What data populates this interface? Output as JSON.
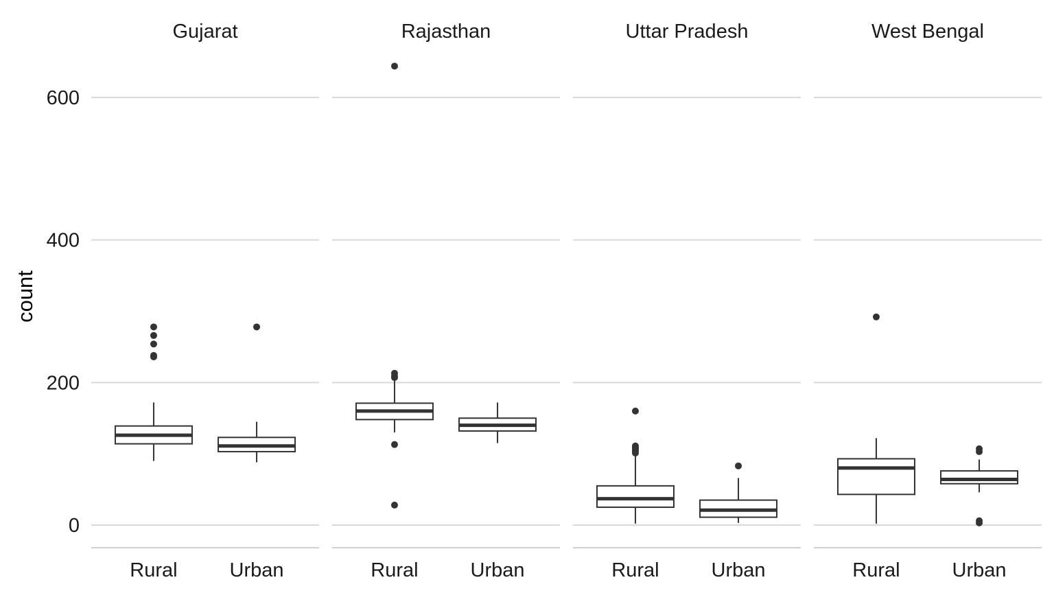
{
  "chart_data": {
    "type": "boxplot",
    "ylabel": "count",
    "ylim": [
      -30,
      640
    ],
    "y_ticks": [
      0,
      200,
      400,
      600
    ],
    "y_tick_labels": [
      "0",
      "200",
      "400",
      "600"
    ],
    "categories": [
      "Rural",
      "Urban"
    ],
    "grid": "horizontal major",
    "facets": [
      {
        "title": "Gujarat",
        "boxes": [
          {
            "category": "Rural",
            "min": 90,
            "q1": 114,
            "median": 126,
            "q3": 139,
            "max": 172,
            "outliers": [
              236,
              238,
              254,
              266,
              278
            ]
          },
          {
            "category": "Urban",
            "min": 88,
            "q1": 103,
            "median": 111,
            "q3": 123,
            "max": 145,
            "outliers": [
              278
            ]
          }
        ]
      },
      {
        "title": "Rajasthan",
        "boxes": [
          {
            "category": "Rural",
            "min": 130,
            "q1": 148,
            "median": 160,
            "q3": 171,
            "max": 204,
            "outliers": [
              28,
              113,
              207,
              209,
              213,
              644
            ]
          },
          {
            "category": "Urban",
            "min": 115,
            "q1": 132,
            "median": 140,
            "q3": 150,
            "max": 172,
            "outliers": []
          }
        ]
      },
      {
        "title": "Uttar Pradesh",
        "boxes": [
          {
            "category": "Rural",
            "min": 2,
            "q1": 25,
            "median": 37,
            "q3": 55,
            "max": 100,
            "outliers": [
              101,
              103,
              105,
              107,
              109,
              111,
              160
            ]
          },
          {
            "category": "Urban",
            "min": 3,
            "q1": 11,
            "median": 21,
            "q3": 35,
            "max": 66,
            "outliers": [
              83
            ]
          }
        ]
      },
      {
        "title": "West Bengal",
        "boxes": [
          {
            "category": "Rural",
            "min": 2,
            "q1": 43,
            "median": 80,
            "q3": 93,
            "max": 122,
            "outliers": [
              292
            ]
          },
          {
            "category": "Urban",
            "min": 46,
            "q1": 58,
            "median": 64,
            "q3": 76,
            "max": 92,
            "outliers": [
              3,
              6,
              103,
              107
            ]
          }
        ]
      }
    ]
  }
}
